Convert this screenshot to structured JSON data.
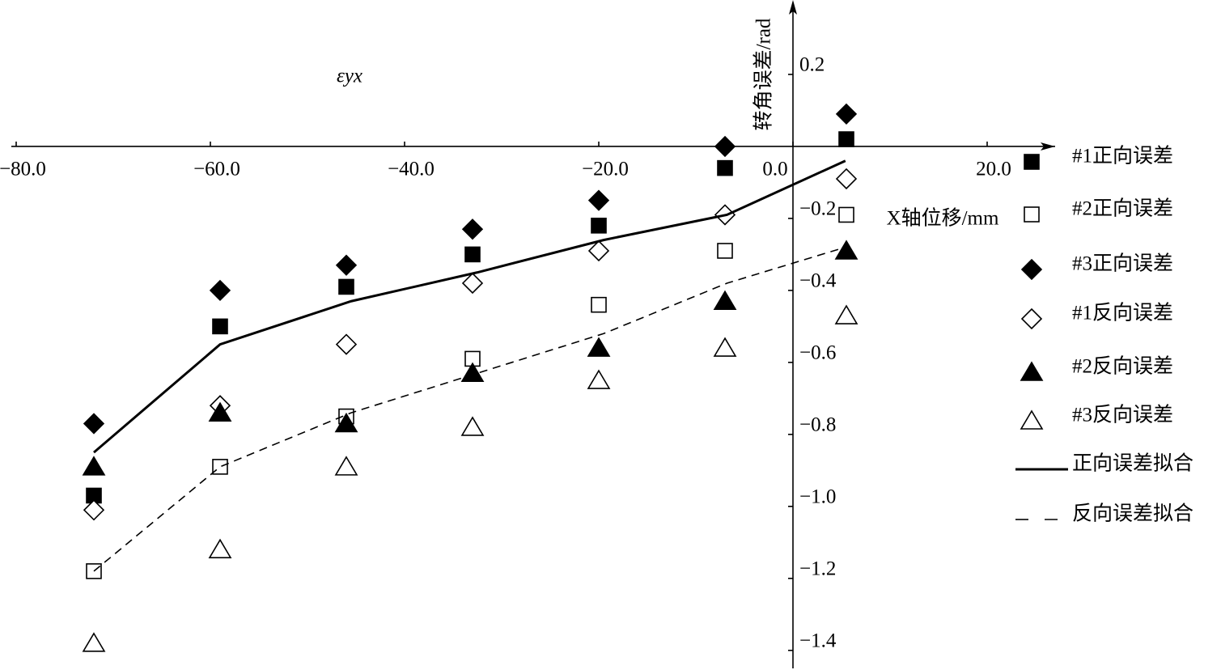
{
  "chart_data": {
    "type": "scatter",
    "y_label": "转角误差/rad",
    "x_label": "X轴位移/mm",
    "annotation": "εyx",
    "xlim": [
      -80.5,
      27
    ],
    "ylim": [
      -1.45,
      0.4
    ],
    "xticks": [
      {
        "value": -80,
        "label": "−80.0"
      },
      {
        "value": -60,
        "label": "−60.0"
      },
      {
        "value": -40,
        "label": "−40.0"
      },
      {
        "value": -20,
        "label": "−20.0"
      },
      {
        "value": 0,
        "label": "0.0"
      },
      {
        "value": 20,
        "label": "20.0"
      }
    ],
    "yticks": [
      0.2,
      {
        "value": -0.2,
        "label": "−0.2"
      },
      {
        "value": -0.4,
        "label": "−0.4"
      },
      {
        "value": -0.6,
        "label": "−0.6"
      },
      {
        "value": -0.8,
        "label": "−0.8"
      },
      {
        "value": -1.0,
        "label": "−1.0"
      },
      {
        "value": -1.2,
        "label": "−1.2"
      },
      {
        "value": -1.4,
        "label": "−1.4"
      }
    ],
    "series": [
      {
        "name": "#1正向误差",
        "marker": "square",
        "filled": true,
        "color": "#000000",
        "x": [
          -72,
          -59,
          -46,
          -33,
          -20,
          -7,
          5.5
        ],
        "values": [
          -0.97,
          -0.5,
          -0.39,
          -0.3,
          -0.22,
          -0.06,
          0.02
        ]
      },
      {
        "name": "#2正向误差",
        "marker": "square",
        "filled": false,
        "color": "#000000",
        "x": [
          -72,
          -59,
          -46,
          -33,
          -20,
          -7,
          5.5
        ],
        "values": [
          -1.18,
          -0.89,
          -0.75,
          -0.59,
          -0.44,
          -0.29,
          -0.19
        ]
      },
      {
        "name": "#3正向误差",
        "marker": "diamond",
        "filled": true,
        "color": "#000000",
        "x": [
          -72,
          -59,
          -46,
          -33,
          -20,
          -7,
          5.5
        ],
        "values": [
          -0.77,
          -0.4,
          -0.33,
          -0.23,
          -0.15,
          0.0,
          0.09
        ]
      },
      {
        "name": "#1反向误差",
        "marker": "diamond",
        "filled": false,
        "color": "#000000",
        "x": [
          -72,
          -59,
          -46,
          -33,
          -20,
          -7,
          5.5
        ],
        "values": [
          -1.01,
          -0.72,
          -0.55,
          -0.38,
          -0.29,
          -0.19,
          -0.09
        ]
      },
      {
        "name": "#2反向误差",
        "marker": "triangle",
        "filled": true,
        "color": "#000000",
        "x": [
          -72,
          -59,
          -46,
          -33,
          -20,
          -7,
          5.5
        ],
        "values": [
          -0.89,
          -0.74,
          -0.77,
          -0.63,
          -0.56,
          -0.43,
          -0.29
        ]
      },
      {
        "name": "#3反向误差",
        "marker": "triangle",
        "filled": false,
        "color": "#000000",
        "x": [
          -72,
          -59,
          -46,
          -33,
          -20,
          -7,
          5.5
        ],
        "values": [
          -1.38,
          -1.12,
          -0.89,
          -0.78,
          -0.65,
          -0.56,
          -0.47
        ]
      },
      {
        "name": "正向误差拟合",
        "line": "solid",
        "color": "#000000",
        "x": [
          -72,
          -59,
          -45.5,
          -32.5,
          -19.5,
          -6.8,
          5.4
        ],
        "values": [
          -0.85,
          -0.55,
          -0.43,
          -0.35,
          -0.26,
          -0.19,
          -0.04
        ]
      },
      {
        "name": "反向误差拟合",
        "line": "dashed",
        "color": "#000000",
        "x": [
          -72,
          -59,
          -45.5,
          -32.5,
          -19.5,
          -6.8,
          5.4
        ],
        "values": [
          -1.18,
          -0.89,
          -0.74,
          -0.63,
          -0.52,
          -0.38,
          -0.28
        ]
      }
    ]
  }
}
